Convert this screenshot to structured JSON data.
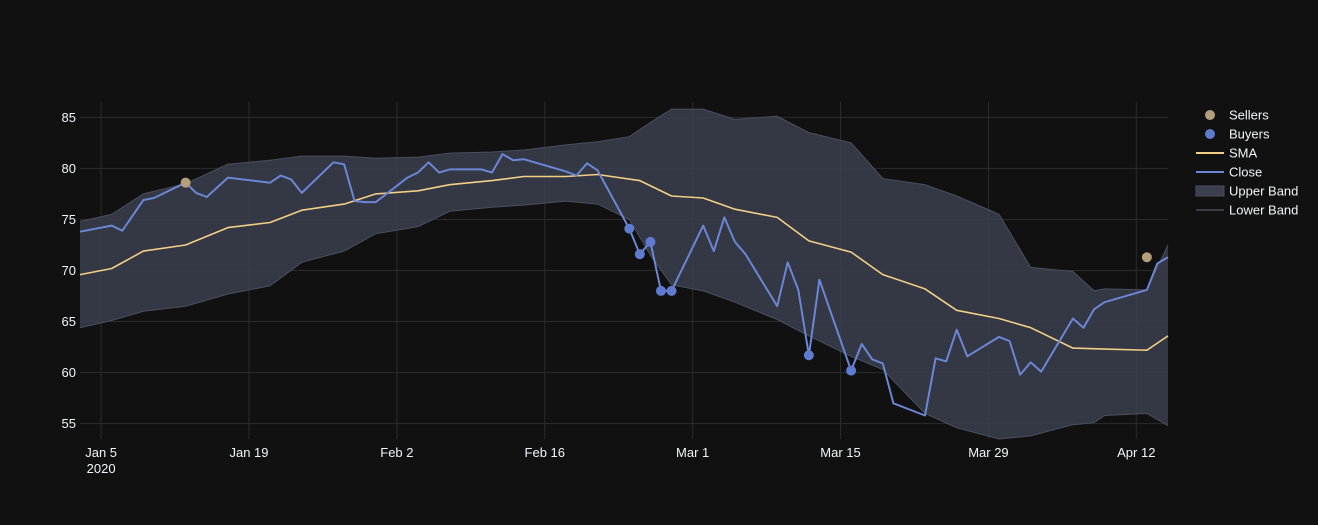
{
  "chart_data": {
    "type": "line",
    "title": "",
    "xlabel": "",
    "ylabel": "",
    "ylim": [
      53.5,
      86.5
    ],
    "xlim": [
      "2020-01-03",
      "2020-04-15"
    ],
    "grid": true,
    "legend_position": "top-right",
    "x_ticks": [
      {
        "date": "2020-01-05",
        "label": "Jan 5",
        "sublabel": "2020"
      },
      {
        "date": "2020-01-19",
        "label": "Jan 19",
        "sublabel": ""
      },
      {
        "date": "2020-02-02",
        "label": "Feb 2",
        "sublabel": ""
      },
      {
        "date": "2020-02-16",
        "label": "Feb 16",
        "sublabel": ""
      },
      {
        "date": "2020-03-01",
        "label": "Mar 1",
        "sublabel": ""
      },
      {
        "date": "2020-03-15",
        "label": "Mar 15",
        "sublabel": ""
      },
      {
        "date": "2020-03-29",
        "label": "Mar 29",
        "sublabel": ""
      },
      {
        "date": "2020-04-12",
        "label": "Apr 12",
        "sublabel": ""
      }
    ],
    "y_ticks": [
      55,
      60,
      65,
      70,
      75,
      80,
      85
    ],
    "series": [
      {
        "name": "Sellers",
        "kind": "markers",
        "color": "#b59e7c",
        "x": [
          "2020-01-13",
          "2020-04-13"
        ],
        "y": [
          78.6,
          71.3
        ]
      },
      {
        "name": "Buyers",
        "kind": "markers",
        "color": "#5f7bd0",
        "x": [
          "2020-02-24",
          "2020-02-25",
          "2020-02-26",
          "2020-02-27",
          "2020-02-28",
          "2020-03-12",
          "2020-03-16"
        ],
        "y": [
          74.1,
          71.6,
          72.8,
          68.0,
          68.0,
          61.7,
          60.2
        ]
      },
      {
        "name": "SMA",
        "kind": "line",
        "color": "#f1cf87",
        "x": [
          "2020-01-03",
          "2020-01-06",
          "2020-01-09",
          "2020-01-13",
          "2020-01-17",
          "2020-01-21",
          "2020-01-24",
          "2020-01-28",
          "2020-01-31",
          "2020-02-04",
          "2020-02-07",
          "2020-02-11",
          "2020-02-14",
          "2020-02-18",
          "2020-02-21",
          "2020-02-25",
          "2020-02-28",
          "2020-03-02",
          "2020-03-05",
          "2020-03-09",
          "2020-03-12",
          "2020-03-16",
          "2020-03-19",
          "2020-03-23",
          "2020-03-26",
          "2020-03-30",
          "2020-04-02",
          "2020-04-06",
          "2020-04-09",
          "2020-04-13",
          "2020-04-15"
        ],
        "y": [
          69.6,
          70.2,
          71.9,
          72.5,
          74.2,
          74.7,
          75.9,
          76.5,
          77.5,
          77.8,
          78.4,
          78.8,
          79.2,
          79.2,
          79.4,
          78.8,
          77.3,
          77.1,
          76.0,
          75.2,
          72.9,
          71.8,
          69.6,
          68.2,
          66.1,
          65.3,
          64.4,
          62.4,
          62.3,
          62.2,
          63.6
        ]
      },
      {
        "name": "Close",
        "kind": "line",
        "color": "#6b86d4",
        "x": [
          "2020-01-03",
          "2020-01-06",
          "2020-01-07",
          "2020-01-08",
          "2020-01-09",
          "2020-01-10",
          "2020-01-13",
          "2020-01-14",
          "2020-01-15",
          "2020-01-17",
          "2020-01-21",
          "2020-01-22",
          "2020-01-23",
          "2020-01-24",
          "2020-01-27",
          "2020-01-28",
          "2020-01-29",
          "2020-01-30",
          "2020-01-31",
          "2020-02-03",
          "2020-02-04",
          "2020-02-05",
          "2020-02-06",
          "2020-02-07",
          "2020-02-10",
          "2020-02-11",
          "2020-02-12",
          "2020-02-13",
          "2020-02-14",
          "2020-02-18",
          "2020-02-19",
          "2020-02-20",
          "2020-02-21",
          "2020-02-24",
          "2020-02-25",
          "2020-02-26",
          "2020-02-27",
          "2020-02-28",
          "2020-03-02",
          "2020-03-03",
          "2020-03-04",
          "2020-03-05",
          "2020-03-06",
          "2020-03-09",
          "2020-03-10",
          "2020-03-11",
          "2020-03-12",
          "2020-03-13",
          "2020-03-16",
          "2020-03-17",
          "2020-03-18",
          "2020-03-19",
          "2020-03-20",
          "2020-03-23",
          "2020-03-24",
          "2020-03-25",
          "2020-03-26",
          "2020-03-27",
          "2020-03-30",
          "2020-03-31",
          "2020-04-01",
          "2020-04-02",
          "2020-04-03",
          "2020-04-06",
          "2020-04-07",
          "2020-04-08",
          "2020-04-09",
          "2020-04-13",
          "2020-04-14",
          "2020-04-15"
        ],
        "y": [
          73.8,
          74.4,
          73.9,
          75.4,
          76.9,
          77.1,
          78.6,
          77.6,
          77.2,
          79.1,
          78.6,
          79.3,
          78.9,
          77.6,
          80.6,
          80.4,
          76.8,
          76.7,
          76.7,
          79.1,
          79.6,
          80.6,
          79.6,
          79.9,
          79.9,
          79.6,
          81.4,
          80.8,
          80.9,
          79.7,
          79.3,
          80.5,
          79.8,
          74.1,
          71.6,
          72.8,
          68.0,
          68.0,
          74.4,
          71.9,
          75.2,
          72.8,
          71.6,
          66.5,
          70.8,
          68.1,
          61.7,
          69.1,
          60.2,
          62.8,
          61.3,
          60.9,
          57.0,
          55.8,
          61.4,
          61.1,
          64.2,
          61.6,
          63.5,
          63.1,
          59.8,
          61.0,
          60.1,
          65.3,
          64.4,
          66.2,
          66.9,
          68.1,
          70.7,
          71.3
        ]
      },
      {
        "name": "Upper Band",
        "kind": "band-upper",
        "color": "#3b3f4e",
        "x": [
          "2020-01-03",
          "2020-01-06",
          "2020-01-09",
          "2020-01-13",
          "2020-01-17",
          "2020-01-21",
          "2020-01-24",
          "2020-01-28",
          "2020-01-31",
          "2020-02-04",
          "2020-02-07",
          "2020-02-11",
          "2020-02-14",
          "2020-02-18",
          "2020-02-21",
          "2020-02-24",
          "2020-02-26",
          "2020-02-28",
          "2020-03-02",
          "2020-03-05",
          "2020-03-09",
          "2020-03-12",
          "2020-03-16",
          "2020-03-19",
          "2020-03-23",
          "2020-03-26",
          "2020-03-30",
          "2020-04-02",
          "2020-04-06",
          "2020-04-08",
          "2020-04-09",
          "2020-04-13",
          "2020-04-15"
        ],
        "y": [
          74.8,
          75.5,
          77.5,
          78.5,
          80.4,
          80.8,
          81.2,
          81.2,
          81.0,
          81.1,
          81.5,
          81.6,
          81.8,
          82.3,
          82.6,
          83.1,
          84.5,
          85.8,
          85.8,
          84.8,
          85.1,
          83.5,
          82.5,
          79.0,
          78.4,
          77.3,
          75.5,
          70.3,
          69.9,
          68.0,
          68.2,
          68.1,
          72.5
        ]
      },
      {
        "name": "Lower Band",
        "kind": "band-lower",
        "color": "#2a2d38",
        "x": [
          "2020-01-03",
          "2020-01-06",
          "2020-01-09",
          "2020-01-13",
          "2020-01-17",
          "2020-01-21",
          "2020-01-24",
          "2020-01-28",
          "2020-01-31",
          "2020-02-04",
          "2020-02-07",
          "2020-02-11",
          "2020-02-14",
          "2020-02-18",
          "2020-02-21",
          "2020-02-24",
          "2020-02-26",
          "2020-02-28",
          "2020-03-02",
          "2020-03-05",
          "2020-03-09",
          "2020-03-12",
          "2020-03-16",
          "2020-03-19",
          "2020-03-23",
          "2020-03-26",
          "2020-03-30",
          "2020-04-02",
          "2020-04-06",
          "2020-04-08",
          "2020-04-09",
          "2020-04-13",
          "2020-04-15"
        ],
        "y": [
          64.4,
          65.1,
          66.0,
          66.5,
          67.7,
          68.5,
          70.8,
          71.9,
          73.6,
          74.3,
          75.8,
          76.2,
          76.4,
          76.8,
          76.5,
          75.0,
          71.5,
          68.6,
          68.0,
          66.9,
          65.2,
          63.6,
          61.6,
          60.3,
          56.0,
          54.6,
          53.5,
          53.8,
          54.9,
          55.1,
          55.8,
          56.0,
          54.8
        ]
      }
    ]
  }
}
